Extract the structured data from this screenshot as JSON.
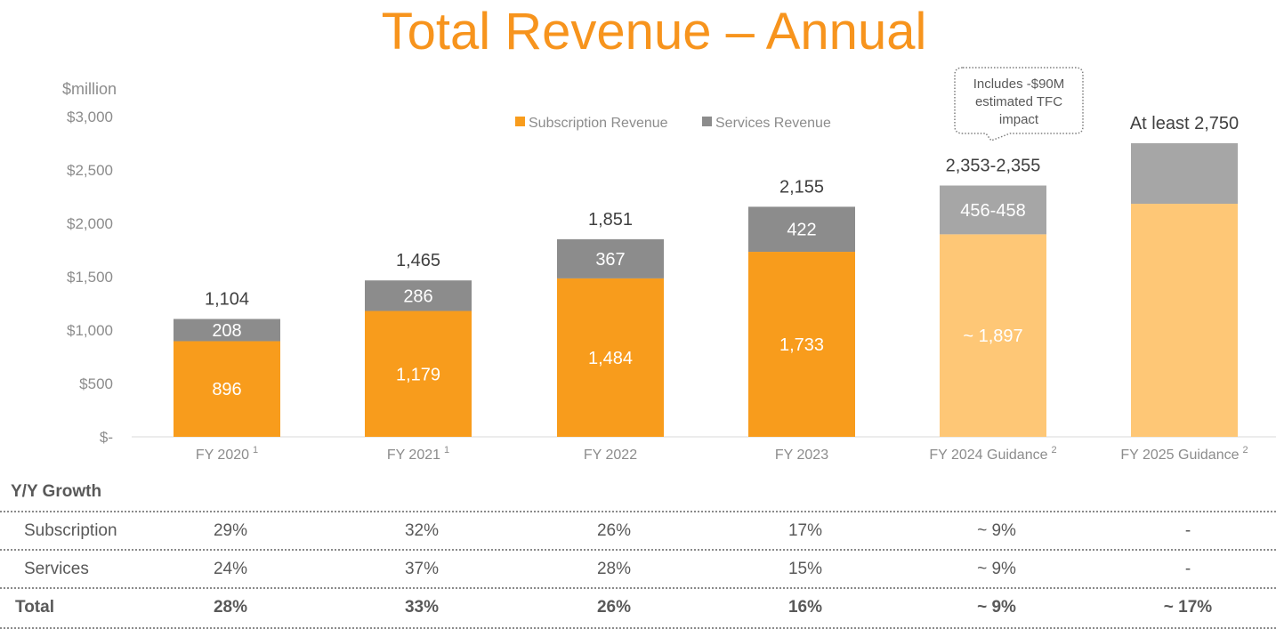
{
  "title": "Total Revenue – Annual",
  "chart_data": {
    "type": "bar",
    "stacked": true,
    "title": "Total Revenue – Annual",
    "ylabel": "$million",
    "ylim": [
      0,
      3000
    ],
    "yticks": [
      0,
      500,
      1000,
      1500,
      2000,
      2500,
      3000
    ],
    "ytick_labels": [
      "$-",
      "$500",
      "$1,000",
      "$1,500",
      "$2,000",
      "$2,500",
      "$3,000"
    ],
    "legend": {
      "placement": "top-center",
      "entries": [
        "Subscription Revenue",
        "Services Revenue"
      ]
    },
    "categories": [
      "FY 2020",
      "FY 2021",
      "FY 2022",
      "FY 2023",
      "FY 2024 Guidance",
      "FY 2025 Guidance"
    ],
    "category_superscripts": [
      "1",
      "1",
      "",
      "",
      "2",
      "2"
    ],
    "series": [
      {
        "name": "Subscription Revenue",
        "values": [
          896,
          1179,
          1484,
          1733,
          1897,
          2183
        ],
        "labels": [
          "896",
          "1,179",
          "1,484",
          "1,733",
          "~ 1,897",
          ""
        ],
        "colors": [
          "#F89C1C",
          "#F89C1C",
          "#F89C1C",
          "#F89C1C",
          "#FEC776",
          "#FEC776"
        ]
      },
      {
        "name": "Services Revenue",
        "values": [
          208,
          286,
          367,
          422,
          457,
          567
        ],
        "labels": [
          "208",
          "286",
          "367",
          "422",
          "456-458",
          ""
        ],
        "colors": [
          "#8C8C8C",
          "#8C8C8C",
          "#8C8C8C",
          "#8C8C8C",
          "#A6A6A6",
          "#A6A6A6"
        ]
      }
    ],
    "totals": [
      1104,
      1465,
      1851,
      2155,
      2354,
      2750
    ],
    "total_labels": [
      "1,104",
      "1,465",
      "1,851",
      "2,155",
      "2,353-2,355",
      "At least 2,750"
    ],
    "annotation": {
      "category": "FY 2024 Guidance",
      "lines": [
        "Includes -$90M",
        "estimated TFC",
        "impact"
      ]
    },
    "legend_colors": [
      "#F89C1C",
      "#8C8C8C"
    ]
  },
  "growth_table": {
    "heading": "Y/Y Growth",
    "rows": [
      {
        "label": "Subscription",
        "values": [
          "29%",
          "32%",
          "26%",
          "17%",
          "~ 9%",
          "-"
        ]
      },
      {
        "label": "Services",
        "values": [
          "24%",
          "37%",
          "28%",
          "15%",
          "~ 9%",
          "-"
        ]
      },
      {
        "label": "Total",
        "values": [
          "28%",
          "33%",
          "26%",
          "16%",
          "~ 9%",
          "~ 17%"
        ]
      }
    ]
  }
}
